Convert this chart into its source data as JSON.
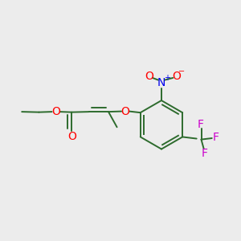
{
  "bg_color": "#ececec",
  "bond_color": "#2d6b2d",
  "O_color": "#ff0000",
  "N_color": "#0000ee",
  "F_color": "#cc00cc",
  "line_width": 1.4,
  "font_size_atom": 10,
  "font_size_super": 7,
  "fig_size": [
    3.0,
    3.0
  ],
  "dpi": 100,
  "xlim": [
    -1.5,
    1.3
  ],
  "ylim": [
    -1.1,
    1.0
  ]
}
